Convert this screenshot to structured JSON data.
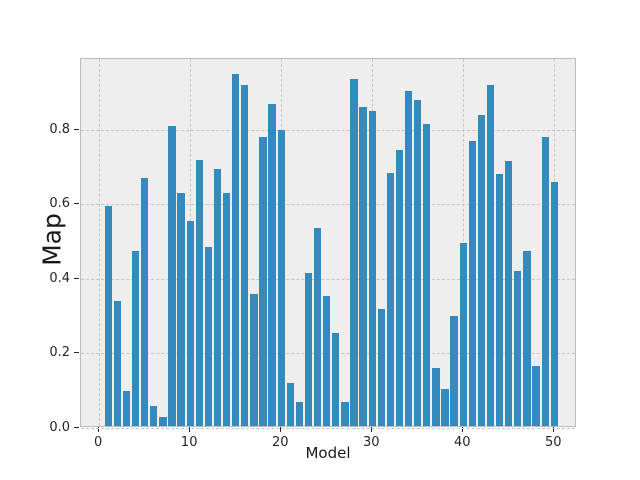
{
  "chart_data": {
    "type": "bar",
    "title": "",
    "xlabel": "Model",
    "ylabel": "Map",
    "x": [
      1,
      2,
      3,
      4,
      5,
      6,
      7,
      8,
      9,
      10,
      11,
      12,
      13,
      14,
      15,
      16,
      17,
      18,
      19,
      20,
      21,
      22,
      23,
      24,
      25,
      26,
      27,
      28,
      29,
      30,
      31,
      32,
      33,
      34,
      35,
      36,
      37,
      38,
      39,
      40,
      41,
      42,
      43,
      44,
      45,
      46,
      47,
      48,
      49,
      50
    ],
    "values": [
      0.59,
      0.335,
      0.095,
      0.47,
      0.665,
      0.055,
      0.025,
      0.805,
      0.625,
      0.55,
      0.715,
      0.48,
      0.69,
      0.625,
      0.945,
      0.915,
      0.355,
      0.775,
      0.865,
      0.795,
      0.115,
      0.065,
      0.41,
      0.53,
      0.35,
      0.25,
      0.065,
      0.93,
      0.855,
      0.845,
      0.315,
      0.68,
      0.74,
      0.9,
      0.875,
      0.81,
      0.155,
      0.1,
      0.295,
      0.49,
      0.765,
      0.835,
      0.915,
      0.675,
      0.71,
      0.415,
      0.47,
      0.16,
      0.775,
      0.655
    ],
    "xticks": [
      0,
      10,
      20,
      30,
      40,
      50
    ],
    "yticks": [
      0.0,
      0.2,
      0.4,
      0.6,
      0.8
    ],
    "xlim": [
      -2.0,
      52.5
    ],
    "ylim": [
      0,
      0.99
    ],
    "bar_width_units": 0.8,
    "grid": "dashed, at all ticks, below bars",
    "legend": "none",
    "colors": {
      "bar": "#348ABD",
      "axes_background": "#eeeeee",
      "figure_background": "#ffffff",
      "grid": "#c6c6c6",
      "spine": "#bcbcbc",
      "tick_text": "#262626",
      "label_text": "#1a1a1a"
    }
  }
}
